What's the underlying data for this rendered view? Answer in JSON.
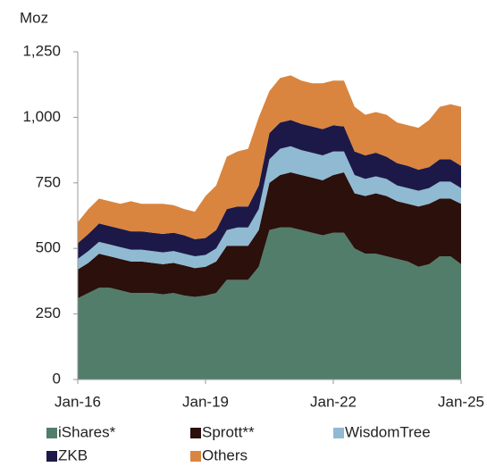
{
  "chart_data": {
    "type": "stacked_area",
    "y_label": "Moz",
    "x": [
      "Jan-16",
      "Apr-16",
      "Jul-16",
      "Oct-16",
      "Jan-17",
      "Apr-17",
      "Jul-17",
      "Oct-17",
      "Jan-18",
      "Apr-18",
      "Jul-18",
      "Oct-18",
      "Jan-19",
      "Apr-19",
      "Jul-19",
      "Oct-19",
      "Jan-20",
      "Apr-20",
      "Jul-20",
      "Oct-20",
      "Jan-21",
      "Apr-21",
      "Jul-21",
      "Oct-21",
      "Jan-22",
      "Apr-22",
      "Jul-22",
      "Oct-22",
      "Jan-23",
      "Apr-23",
      "Jul-23",
      "Oct-23",
      "Jan-24",
      "Apr-24",
      "Jul-24",
      "Oct-24",
      "Jan-25"
    ],
    "xticks": [
      "Jan-16",
      "Jan-19",
      "Jan-22",
      "Jan-25"
    ],
    "ylim": [
      0,
      1250
    ],
    "yticks": [
      0,
      250,
      500,
      750,
      {
        "value": 1000,
        "label": "1,000"
      },
      {
        "value": 1250,
        "label": "1,250"
      }
    ],
    "series": [
      {
        "name": "iShares*",
        "color": "#527d6b",
        "values": [
          310,
          330,
          350,
          350,
          340,
          330,
          330,
          330,
          325,
          330,
          320,
          315,
          320,
          330,
          380,
          380,
          380,
          430,
          570,
          580,
          580,
          570,
          560,
          550,
          560,
          560,
          500,
          480,
          480,
          470,
          460,
          450,
          430,
          440,
          470,
          470,
          440
        ]
      },
      {
        "name": "Sprott**",
        "color": "#2b100b",
        "values": [
          110,
          115,
          130,
          120,
          120,
          120,
          120,
          115,
          115,
          115,
          115,
          110,
          110,
          120,
          130,
          130,
          130,
          140,
          180,
          200,
          210,
          210,
          210,
          210,
          220,
          230,
          210,
          220,
          230,
          230,
          220,
          220,
          230,
          230,
          220,
          220,
          230
        ]
      },
      {
        "name": "WisdomTree",
        "color": "#8fbad2",
        "values": [
          40,
          45,
          45,
          45,
          45,
          45,
          45,
          45,
          45,
          45,
          45,
          45,
          45,
          50,
          60,
          70,
          70,
          80,
          90,
          100,
          100,
          95,
          95,
          95,
          90,
          80,
          70,
          65,
          65,
          65,
          60,
          60,
          60,
          60,
          65,
          65,
          60
        ]
      },
      {
        "name": "ZKB",
        "color": "#1c1948",
        "values": [
          60,
          65,
          70,
          70,
          70,
          70,
          70,
          70,
          70,
          70,
          70,
          65,
          65,
          70,
          80,
          80,
          80,
          90,
          100,
          100,
          100,
          100,
          100,
          100,
          100,
          95,
          90,
          90,
          90,
          85,
          85,
          85,
          80,
          80,
          85,
          85,
          85
        ]
      },
      {
        "name": "Others",
        "color": "#d9853f",
        "values": [
          80,
          95,
          95,
          95,
          95,
          115,
          105,
          110,
          115,
          105,
          100,
          105,
          160,
          170,
          200,
          210,
          220,
          260,
          160,
          170,
          170,
          165,
          165,
          175,
          170,
          175,
          170,
          155,
          155,
          160,
          155,
          155,
          160,
          180,
          200,
          210,
          225
        ]
      }
    ]
  }
}
